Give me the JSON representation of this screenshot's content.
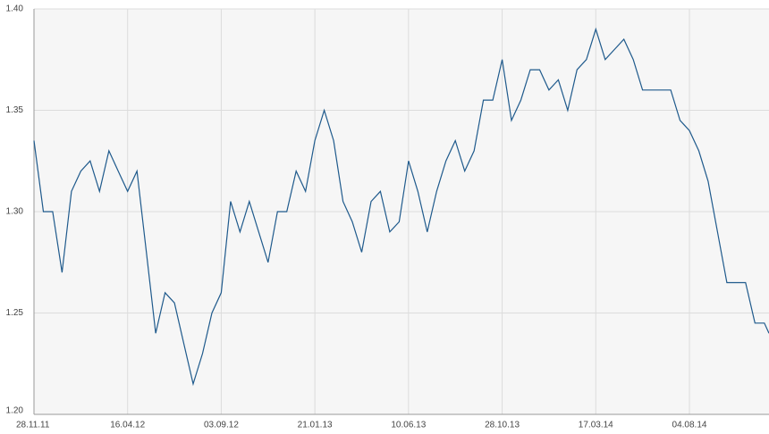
{
  "chart_data": {
    "type": "line",
    "x": [
      "28.11.11",
      "12.12.11",
      "26.12.11",
      "09.01.12",
      "23.01.12",
      "06.02.12",
      "20.02.12",
      "05.03.12",
      "19.03.12",
      "02.04.12",
      "16.04.12",
      "30.04.12",
      "14.05.12",
      "28.05.12",
      "11.06.12",
      "25.06.12",
      "09.07.12",
      "23.07.12",
      "06.08.12",
      "20.08.12",
      "03.09.12",
      "17.09.12",
      "01.10.12",
      "15.10.12",
      "29.10.12",
      "12.11.12",
      "26.11.12",
      "10.12.12",
      "24.12.12",
      "07.01.13",
      "21.01.13",
      "04.02.13",
      "18.02.13",
      "04.03.13",
      "18.03.13",
      "01.04.13",
      "15.04.13",
      "29.04.13",
      "13.05.13",
      "27.05.13",
      "10.06.13",
      "24.06.13",
      "08.07.13",
      "22.07.13",
      "05.08.13",
      "19.08.13",
      "02.09.13",
      "16.09.13",
      "30.09.13",
      "14.10.13",
      "28.10.13",
      "11.11.13",
      "25.11.13",
      "09.12.13",
      "23.12.13",
      "06.01.14",
      "20.01.14",
      "03.02.14",
      "17.02.14",
      "03.03.14",
      "17.03.14",
      "31.03.14",
      "14.04.14",
      "28.04.14",
      "12.05.14",
      "26.05.14",
      "09.06.14",
      "23.06.14",
      "07.07.14",
      "21.07.14",
      "04.08.14",
      "18.08.14",
      "01.09.14",
      "15.09.14",
      "29.09.14",
      "13.10.14",
      "27.10.14",
      "10.11.14",
      "24.11.14",
      "01.12.14"
    ],
    "series": [
      {
        "color": "#1f5a8c",
        "values": [
          1.335,
          1.3,
          1.3,
          1.27,
          1.31,
          1.32,
          1.325,
          1.31,
          1.33,
          1.32,
          1.31,
          1.32,
          1.28,
          1.24,
          1.26,
          1.255,
          1.235,
          1.215,
          1.23,
          1.25,
          1.26,
          1.305,
          1.29,
          1.305,
          1.29,
          1.275,
          1.3,
          1.3,
          1.32,
          1.31,
          1.335,
          1.35,
          1.335,
          1.305,
          1.295,
          1.28,
          1.305,
          1.31,
          1.29,
          1.295,
          1.325,
          1.31,
          1.29,
          1.31,
          1.325,
          1.335,
          1.32,
          1.33,
          1.355,
          1.355,
          1.375,
          1.345,
          1.355,
          1.37,
          1.37,
          1.36,
          1.365,
          1.35,
          1.37,
          1.375,
          1.39,
          1.375,
          1.38,
          1.385,
          1.375,
          1.36,
          1.36,
          1.36,
          1.36,
          1.345,
          1.34,
          1.33,
          1.315,
          1.29,
          1.265,
          1.265,
          1.265,
          1.245,
          1.245,
          1.24
        ]
      }
    ],
    "xlim": [
      "28.11.11",
      "01.12.14"
    ],
    "xticks": [
      "28.11.11",
      "16.04.12",
      "03.09.12",
      "21.01.13",
      "10.06.13",
      "28.10.13",
      "17.03.14",
      "04.08.14"
    ],
    "ylim": [
      1.2,
      1.4
    ],
    "yticks": [
      {
        "value": 1.2,
        "label": "1.20"
      },
      {
        "value": 1.25,
        "label": "1.25"
      },
      {
        "value": 1.3,
        "label": "1.30"
      },
      {
        "value": 1.35,
        "label": "1.35"
      },
      {
        "value": 1.4,
        "label": "1.40"
      }
    ],
    "grid": true
  }
}
